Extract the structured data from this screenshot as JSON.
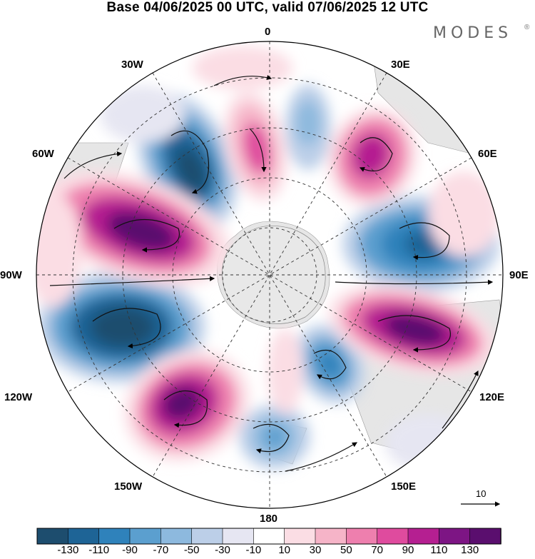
{
  "title": "Base 04/06/2025 00 UTC, valid 07/06/2025 12 UTC",
  "brand": "MODES",
  "brand_mark": "®",
  "map": {
    "projection": "south-polar-stereographic",
    "longitude_labels": [
      "0",
      "30E",
      "60E",
      "90E",
      "120E",
      "150E",
      "180",
      "150W",
      "120W",
      "90W",
      "60W",
      "30W"
    ],
    "land_color": "#e8e8e8",
    "graticule": "dashed"
  },
  "anomalies": {
    "negative_centers": [
      "30W",
      "80E",
      "105W",
      "160E",
      "170W",
      "145E"
    ],
    "positive_centers": [
      "10W",
      "40E",
      "70W",
      "110E",
      "135W"
    ]
  },
  "reference_vector": {
    "label": "10"
  },
  "colorbar": {
    "labels": [
      "-130",
      "-110",
      "-90",
      "-70",
      "-50",
      "-30",
      "-10",
      "10",
      "30",
      "50",
      "70",
      "90",
      "110",
      "130"
    ],
    "colors": [
      "#1d4d6e",
      "#1e6496",
      "#2f82bb",
      "#5b9fcf",
      "#8db9de",
      "#bccfe8",
      "#e6e6f2",
      "#ffffff",
      "#fbdde4",
      "#f6b4c8",
      "#ee7fae",
      "#df4b9e",
      "#b51f91",
      "#7d1584",
      "#5a0e6e"
    ]
  }
}
